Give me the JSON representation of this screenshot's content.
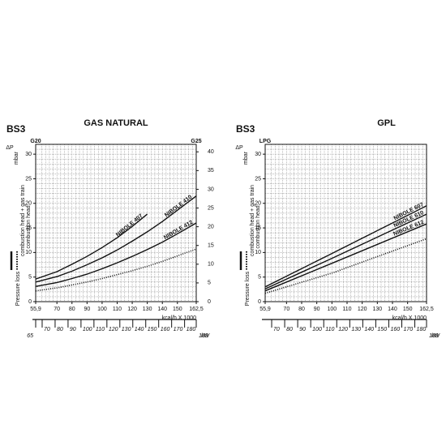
{
  "chart_data": [
    {
      "type": "line",
      "label": "BS3",
      "title": "GAS NATURAL",
      "x_label": "kcal/h X 1000",
      "x2_label": "kW",
      "y_label": "mbar",
      "y_symbol": "ΔP",
      "y_gas": "G20",
      "y2_gas": "G25",
      "legend": [
        "combustion head + gas train",
        "Pressure loss"
      ],
      "x": [
        55.9,
        70,
        80,
        90,
        100,
        110,
        120,
        130,
        140,
        150,
        162.5
      ],
      "xlim": [
        55.9,
        162.5
      ],
      "xticks": [
        {
          "value": 55.9,
          "label": "55,9"
        },
        70,
        80,
        90,
        100,
        110,
        120,
        130,
        140,
        150,
        {
          "value": 162.5,
          "label": "162,5"
        }
      ],
      "x2lim": [
        65,
        189
      ],
      "x2ticks": [
        65,
        70,
        80,
        90,
        100,
        110,
        120,
        130,
        140,
        150,
        160,
        170,
        180,
        189
      ],
      "ylim": [
        0,
        32
      ],
      "yticks": [
        0,
        5,
        10,
        15,
        20,
        25,
        30
      ],
      "y2lim": [
        0,
        42
      ],
      "y2ticks": [
        0,
        5,
        10,
        15,
        20,
        25,
        30,
        35,
        40
      ],
      "grid": true,
      "series": [
        {
          "name": "NIBOLE 407",
          "style": "solid",
          "color": "#111111",
          "values": [
            4.6,
            6.1,
            7.6,
            9.2,
            11.0,
            13.0,
            15.3,
            17.8,
            null,
            null,
            null
          ]
        },
        {
          "name": "NIBOLE 410",
          "style": "solid",
          "color": "#111111",
          "values": [
            4.0,
            5.1,
            6.2,
            7.5,
            8.9,
            10.5,
            12.3,
            14.2,
            16.3,
            18.6,
            21.5
          ]
        },
        {
          "name": "NIBOLE 412",
          "style": "solid",
          "color": "#111111",
          "values": [
            3.1,
            3.9,
            4.7,
            5.6,
            6.7,
            7.9,
            9.2,
            10.6,
            12.1,
            13.8,
            16.0
          ]
        },
        {
          "name": "combustion head",
          "style": "dotted",
          "color": "#111111",
          "values": [
            2.2,
            2.8,
            3.4,
            4.0,
            4.7,
            5.5,
            6.3,
            7.2,
            8.2,
            9.3,
            10.7
          ]
        }
      ]
    },
    {
      "type": "line",
      "label": "BS3",
      "title": "GPL",
      "x_label": "kcal/h X 1000",
      "x2_label": "kW",
      "y_label": "mbar",
      "y_symbol": "ΔP",
      "y_gas": "LPG",
      "legend": [
        "combustion head + gas train",
        "Pressure loss"
      ],
      "x": [
        55.9,
        100,
        162.5
      ],
      "xlim": [
        55.9,
        162.5
      ],
      "xticks": [
        {
          "value": 55.9,
          "label": "55,9"
        },
        70,
        80,
        90,
        100,
        110,
        120,
        130,
        140,
        150,
        {
          "value": 162.5,
          "label": "162,5"
        }
      ],
      "x2lim": [
        65,
        189
      ],
      "x2ticks": [
        70,
        80,
        90,
        100,
        110,
        120,
        130,
        140,
        150,
        160,
        170,
        180,
        189
      ],
      "ylim": [
        0,
        32
      ],
      "yticks": [
        0,
        5,
        10,
        15,
        20,
        25,
        30
      ],
      "grid": true,
      "series": [
        {
          "name": "NIBOLE 607",
          "style": "solid",
          "color": "#111111",
          "values": [
            3.0,
            9.8,
            19.5
          ]
        },
        {
          "name": "NIBOLE 610",
          "style": "solid",
          "color": "#111111",
          "values": [
            2.6,
            8.8,
            17.8
          ]
        },
        {
          "name": "NIBOLE 612",
          "style": "solid",
          "color": "#111111",
          "values": [
            2.2,
            7.8,
            15.8
          ]
        },
        {
          "name": "combustion head",
          "style": "dotted",
          "color": "#111111",
          "values": [
            1.7,
            5.8,
            12.8
          ]
        }
      ]
    }
  ]
}
